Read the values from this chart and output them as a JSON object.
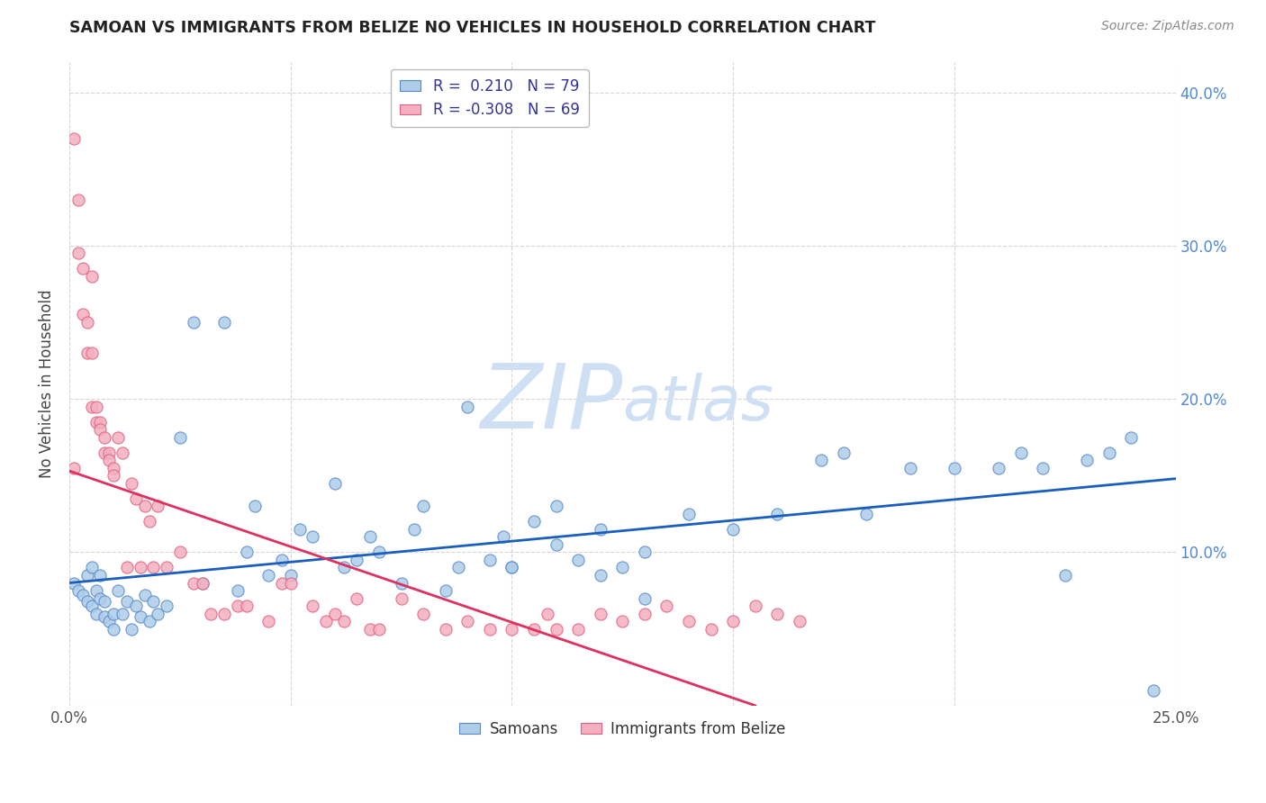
{
  "title": "SAMOAN VS IMMIGRANTS FROM BELIZE NO VEHICLES IN HOUSEHOLD CORRELATION CHART",
  "source": "Source: ZipAtlas.com",
  "ylabel": "No Vehicles in Household",
  "x_min": 0.0,
  "x_max": 0.25,
  "y_min": 0.0,
  "y_max": 0.42,
  "x_ticks": [
    0.0,
    0.05,
    0.1,
    0.15,
    0.2,
    0.25
  ],
  "x_tick_labels": [
    "0.0%",
    "",
    "",
    "",
    "",
    "25.0%"
  ],
  "y_ticks": [
    0.0,
    0.1,
    0.2,
    0.3,
    0.4
  ],
  "y_tick_labels_right": [
    "",
    "10.0%",
    "20.0%",
    "30.0%",
    "40.0%"
  ],
  "legend_entry1": "R =  0.210   N = 79",
  "legend_entry2": "R = -0.308   N = 69",
  "legend_label1": "Samoans",
  "legend_label2": "Immigrants from Belize",
  "samoan_color": "#aecde8",
  "belize_color": "#f4afc0",
  "samoan_edge": "#5588cc",
  "belize_edge": "#e06080",
  "trend_samoan_color": "#1a5fbe",
  "trend_belize_color": "#e03060",
  "watermark_color": "#d0e0f4",
  "background_color": "#ffffff",
  "grid_color": "#cccccc",
  "samoans_x": [
    0.001,
    0.002,
    0.003,
    0.004,
    0.004,
    0.005,
    0.005,
    0.006,
    0.006,
    0.007,
    0.007,
    0.008,
    0.008,
    0.009,
    0.01,
    0.01,
    0.011,
    0.012,
    0.013,
    0.014,
    0.015,
    0.016,
    0.017,
    0.018,
    0.019,
    0.02,
    0.022,
    0.025,
    0.028,
    0.03,
    0.035,
    0.038,
    0.04,
    0.042,
    0.045,
    0.048,
    0.05,
    0.052,
    0.055,
    0.06,
    0.062,
    0.065,
    0.068,
    0.07,
    0.075,
    0.078,
    0.08,
    0.085,
    0.088,
    0.09,
    0.095,
    0.098,
    0.1,
    0.105,
    0.11,
    0.115,
    0.12,
    0.125,
    0.13,
    0.14,
    0.15,
    0.16,
    0.17,
    0.175,
    0.18,
    0.19,
    0.2,
    0.21,
    0.215,
    0.22,
    0.225,
    0.23,
    0.235,
    0.24,
    0.245,
    0.1,
    0.11,
    0.12,
    0.13
  ],
  "samoans_y": [
    0.08,
    0.075,
    0.072,
    0.068,
    0.085,
    0.065,
    0.09,
    0.06,
    0.075,
    0.07,
    0.085,
    0.058,
    0.068,
    0.055,
    0.05,
    0.06,
    0.075,
    0.06,
    0.068,
    0.05,
    0.065,
    0.058,
    0.072,
    0.055,
    0.068,
    0.06,
    0.065,
    0.175,
    0.25,
    0.08,
    0.25,
    0.075,
    0.1,
    0.13,
    0.085,
    0.095,
    0.085,
    0.115,
    0.11,
    0.145,
    0.09,
    0.095,
    0.11,
    0.1,
    0.08,
    0.115,
    0.13,
    0.075,
    0.09,
    0.195,
    0.095,
    0.11,
    0.09,
    0.12,
    0.13,
    0.095,
    0.115,
    0.09,
    0.07,
    0.125,
    0.115,
    0.125,
    0.16,
    0.165,
    0.125,
    0.155,
    0.155,
    0.155,
    0.165,
    0.155,
    0.085,
    0.16,
    0.165,
    0.175,
    0.01,
    0.09,
    0.105,
    0.085,
    0.1
  ],
  "belize_x": [
    0.001,
    0.001,
    0.002,
    0.002,
    0.003,
    0.003,
    0.004,
    0.004,
    0.005,
    0.005,
    0.005,
    0.006,
    0.006,
    0.007,
    0.007,
    0.008,
    0.008,
    0.009,
    0.009,
    0.01,
    0.01,
    0.011,
    0.012,
    0.013,
    0.014,
    0.015,
    0.016,
    0.017,
    0.018,
    0.019,
    0.02,
    0.022,
    0.025,
    0.028,
    0.03,
    0.032,
    0.035,
    0.038,
    0.04,
    0.045,
    0.048,
    0.05,
    0.055,
    0.058,
    0.06,
    0.062,
    0.065,
    0.068,
    0.07,
    0.075,
    0.08,
    0.085,
    0.09,
    0.095,
    0.1,
    0.105,
    0.108,
    0.11,
    0.115,
    0.12,
    0.125,
    0.13,
    0.135,
    0.14,
    0.145,
    0.15,
    0.155,
    0.16,
    0.165
  ],
  "belize_y": [
    0.155,
    0.37,
    0.33,
    0.295,
    0.285,
    0.255,
    0.25,
    0.23,
    0.23,
    0.195,
    0.28,
    0.195,
    0.185,
    0.185,
    0.18,
    0.175,
    0.165,
    0.165,
    0.16,
    0.155,
    0.15,
    0.175,
    0.165,
    0.09,
    0.145,
    0.135,
    0.09,
    0.13,
    0.12,
    0.09,
    0.13,
    0.09,
    0.1,
    0.08,
    0.08,
    0.06,
    0.06,
    0.065,
    0.065,
    0.055,
    0.08,
    0.08,
    0.065,
    0.055,
    0.06,
    0.055,
    0.07,
    0.05,
    0.05,
    0.07,
    0.06,
    0.05,
    0.055,
    0.05,
    0.05,
    0.05,
    0.06,
    0.05,
    0.05,
    0.06,
    0.055,
    0.06,
    0.065,
    0.055,
    0.05,
    0.055,
    0.065,
    0.06,
    0.055
  ],
  "samoan_trend_x": [
    0.0,
    0.25
  ],
  "samoan_trend_y": [
    0.08,
    0.148
  ],
  "belize_trend_x": [
    0.0,
    0.155
  ],
  "belize_trend_y": [
    0.153,
    0.0
  ],
  "tick_color": "#5588cc"
}
